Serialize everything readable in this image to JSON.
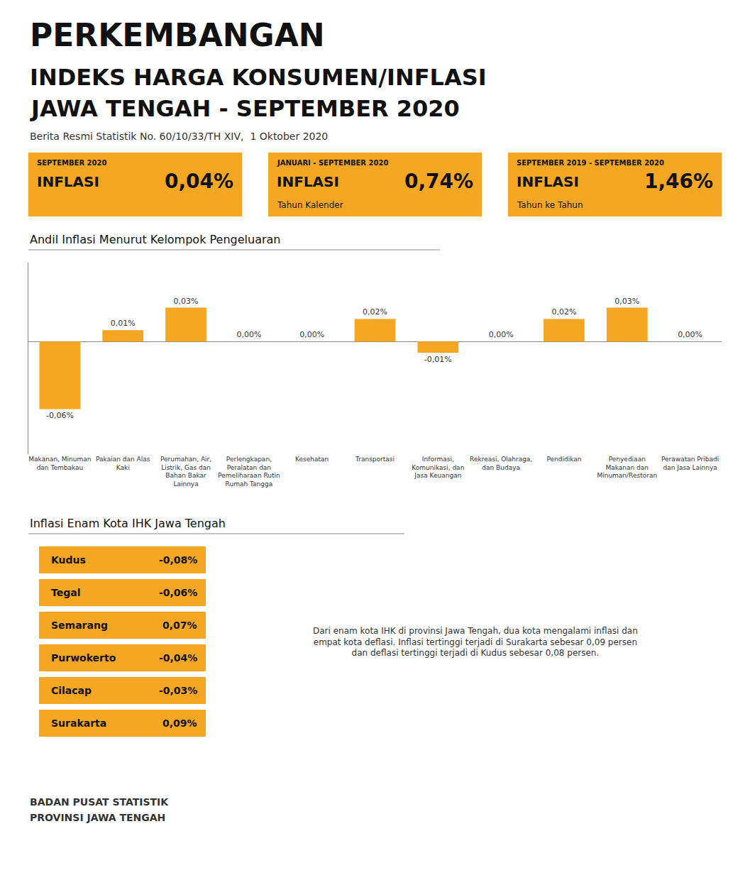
{
  "chart_data": {
    "type": "bar",
    "title": "PERKEMBANGAN\nINDEKS HARGA KONSUMEN/INFLASI\nJAWA TENGAH - SEPTEMBER 2020",
    "subtitle": "Berita Resmi Statistik No. 60/10/33/TH XIV,  1 Oktober 2020",
    "categories": [
      "Makanan, Minuman\ndan Tembakau",
      "Pakaian dan Alas\nKaki",
      "Perumahan, Air,\nListrik, Gas dan\nBahan Bakar\nLainnya",
      "Perlengkapan,\nPeralatan dan\nPemeliharaan Rutin\nRumah Tangga",
      "Kesehatan",
      "Transportasi",
      "Informasi,\nKomunikasi, dan\nJasa Keuangan",
      "Rekreasi, Olahraga,\ndan Budaya",
      "Pendidikan",
      "Penyediaan\nMakanan dan\nMinuman/Restoran",
      "Perawatan Pribadi\ndan Jasa Lainnya"
    ],
    "values": [
      -0.06,
      0.01,
      0.03,
      0.0,
      0.0,
      0.02,
      -0.01,
      0.0,
      0.02,
      0.03,
      0.0
    ],
    "value_labels": [
      "-0,06%",
      "0,01%",
      "0,03%",
      "0,00%",
      "0,00%",
      "0,02%",
      "-0,01%",
      "0,00%",
      "0,02%",
      "0,03%",
      "0,00%"
    ],
    "data_labels": true,
    "color": "#F5A623",
    "ylim": [
      -0.1,
      0.07
    ],
    "tick_labels": "x",
    "grid": false,
    "annotations": [
      "Andil Inflasi Menurut Kelompok Pengeluaran",
      [
        "SEPTEMBER 2020",
        "INFLASI",
        "0,04%"
      ],
      [
        "JANUARI - SEPTEMBER 2020",
        "INFLASI",
        "0,74%",
        "Tahun Kalender"
      ],
      [
        "SEPTEMBER 2019 - SEPTEMBER 2020",
        "INFLASI",
        "1,46%",
        "Tahun ke Tahun"
      ],
      "Inflasi Enam Kota IHK Jawa Tengah",
      [
        "Kudus",
        "-0,08%"
      ],
      [
        "Tegal",
        "-0,06%"
      ],
      [
        "Semarang",
        "0,07%"
      ],
      [
        "Purwokerto",
        "-0,04%"
      ],
      [
        "Cilacap",
        "-0,03%"
      ],
      [
        "Surakarta",
        "0,09%"
      ],
      "Dari enam kota IHK di provinsi Jawa Tengah, dua kota mengalami inflasi dan\nempat kota deflasi. Inflasi tertinggi terjadi di Surakarta sebesar 0,09 persen\ndan deflasi tertinggi terjadi di Kudus sebesar 0,08 persen.",
      "BADAN PUSAT STATISTIK",
      "PROVINSI JAWA TENGAH"
    ]
  }
}
